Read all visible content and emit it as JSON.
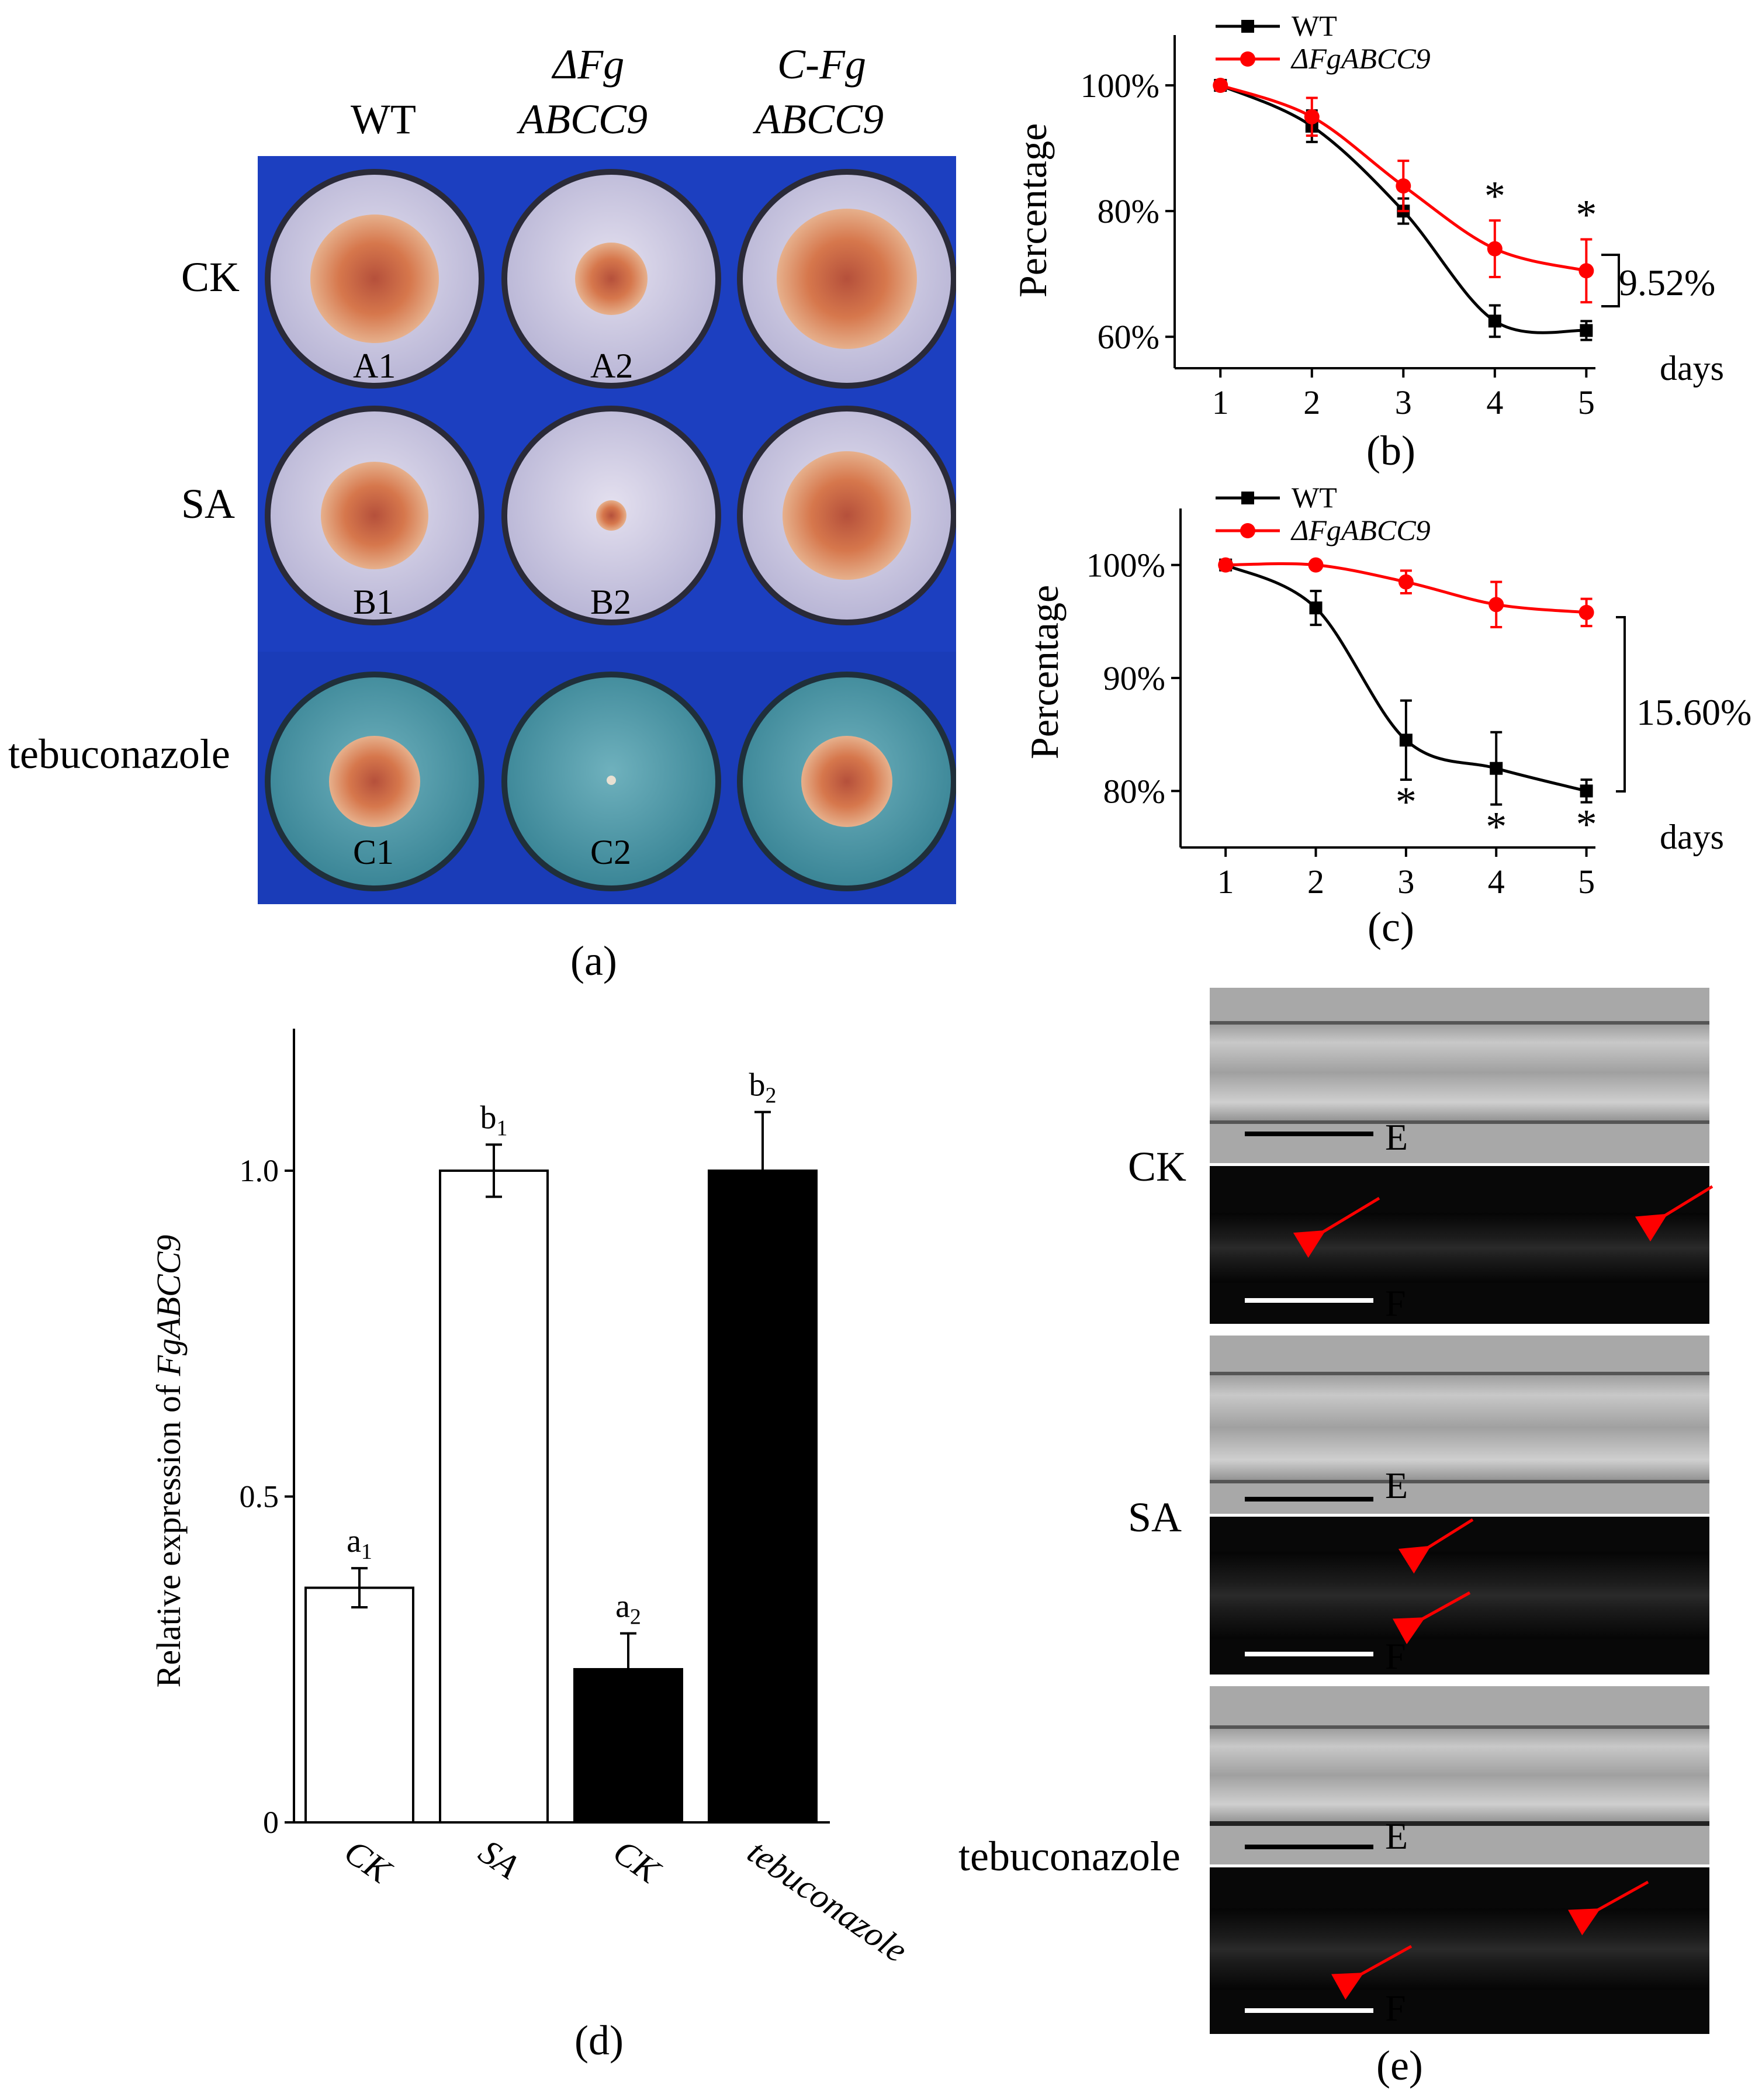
{
  "panel_a": {
    "caption": "(a)",
    "columns": [
      {
        "line1": "WT",
        "line2": ""
      },
      {
        "line1": "ΔFg",
        "line2": "ABCC9"
      },
      {
        "line1": "C-Fg",
        "line2": "ABCC9"
      }
    ],
    "rows": [
      "CK",
      "SA",
      "tebuconazole"
    ],
    "plate_labels": [
      "A1",
      "A2",
      "B1",
      "B2",
      "C1",
      "C2"
    ],
    "colors": {
      "background": "#1c3fc0",
      "colony": "#d68a5a",
      "agar_ck": "#d8d4ea",
      "agar_teb": "#4e9aa8"
    }
  },
  "chart_data": [
    {
      "panel": "b",
      "type": "line",
      "caption": "(b)",
      "ylabel": "Percentage",
      "xlabel": "days",
      "x": [
        1,
        2,
        3,
        4,
        5
      ],
      "xticks": [
        "1",
        "2",
        "3",
        "4",
        "5"
      ],
      "yticks": [
        "60%",
        "80%",
        "100%"
      ],
      "ytick_values": [
        60,
        80,
        100
      ],
      "ylim": [
        55,
        108
      ],
      "xlim": [
        0.5,
        5.1
      ],
      "series": [
        {
          "name": "WT",
          "color": "#000000",
          "marker": "square",
          "values": [
            100,
            93.5,
            80,
            62.5,
            61
          ],
          "errors": [
            0,
            2.5,
            2,
            2.5,
            1.5
          ]
        },
        {
          "name": "ΔFgABCC9",
          "color": "#ff0000",
          "marker": "circle",
          "values": [
            100,
            95,
            84,
            74,
            70.5
          ],
          "errors": [
            0,
            3,
            4,
            4.5,
            5
          ]
        }
      ],
      "significance": [
        {
          "x": 4,
          "label": "*"
        },
        {
          "x": 5,
          "label": "*"
        }
      ],
      "annotation": "9.52%"
    },
    {
      "panel": "c",
      "type": "line",
      "caption": "(c)",
      "ylabel": "Percentage",
      "xlabel": "days",
      "x": [
        1,
        2,
        3,
        4,
        5
      ],
      "xticks": [
        "1",
        "2",
        "3",
        "4",
        "5"
      ],
      "yticks": [
        "80%",
        "90%",
        "100%"
      ],
      "ytick_values": [
        80,
        90,
        100
      ],
      "ylim": [
        75,
        105
      ],
      "xlim": [
        0.5,
        5.1
      ],
      "series": [
        {
          "name": "WT",
          "color": "#000000",
          "marker": "square",
          "values": [
            100,
            96.2,
            84.5,
            82,
            80
          ],
          "errors": [
            0,
            1.5,
            3.5,
            3.2,
            1
          ]
        },
        {
          "name": "ΔFgABCC9",
          "color": "#ff0000",
          "marker": "circle",
          "values": [
            100,
            100,
            98.5,
            96.5,
            95.8
          ],
          "errors": [
            0,
            0,
            1,
            2,
            1.2
          ]
        }
      ],
      "significance": [
        {
          "x": 3,
          "label": "*"
        },
        {
          "x": 4,
          "label": "*"
        },
        {
          "x": 5,
          "label": "*"
        }
      ],
      "annotation": "15.60%"
    },
    {
      "panel": "d",
      "type": "bar",
      "caption": "(d)",
      "ylabel_prefix": "Relative expression of ",
      "ylabel_gene": "FgABCC9",
      "categories": [
        "CK",
        "SA",
        "CK",
        "tebuconazole"
      ],
      "values": [
        0.36,
        1.0,
        0.235,
        1.0
      ],
      "errors": [
        0.03,
        0.04,
        0.055,
        0.09
      ],
      "fills": [
        "#ffffff",
        "#ffffff",
        "#000000",
        "#000000"
      ],
      "letters": [
        {
          "base": "a",
          "sub": "1"
        },
        {
          "base": "b",
          "sub": "1"
        },
        {
          "base": "a",
          "sub": "2"
        },
        {
          "base": "b",
          "sub": "2"
        }
      ],
      "yticks": [
        "0",
        "0.5",
        "1.0"
      ],
      "ytick_values": [
        0,
        0.5,
        1.0
      ],
      "ylim": [
        0,
        1.2
      ]
    }
  ],
  "panel_e": {
    "caption": "(e)",
    "rows": [
      {
        "label": "CK",
        "top_label": "E",
        "bottom_label": "F"
      },
      {
        "label": "SA",
        "top_label": "E",
        "bottom_label": "F"
      },
      {
        "label": "tebuconazole",
        "top_label": "E",
        "bottom_label": "F"
      }
    ],
    "colors": {
      "arrow": "#ff0000",
      "brightfield": "#a9a9a9",
      "fluorescence": "#0b0b0b"
    }
  }
}
